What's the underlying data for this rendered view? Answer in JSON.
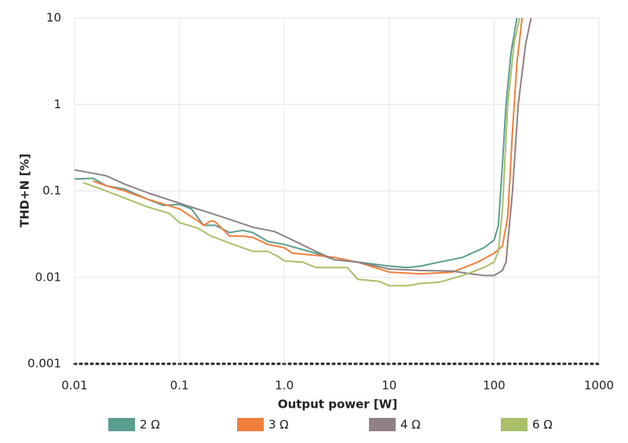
{
  "chart_data": {
    "type": "line",
    "xlabel": "Output power [W]",
    "ylabel": "THD+N [%]",
    "xscale": "log",
    "yscale": "log",
    "grid": true,
    "legend": "bottom",
    "xlim": [
      0.01,
      1000
    ],
    "xticks": [
      0.01,
      0.1,
      {
        "value": 1,
        "label": "1.0"
      },
      10,
      100,
      1000
    ],
    "ylim": [
      0.001,
      10
    ],
    "yticks": [
      0.001,
      0.01,
      0.1,
      1,
      10
    ],
    "series": [
      {
        "name": "2 Ω",
        "color": "#5a9e8f",
        "x": [
          0.01,
          0.015,
          0.02,
          0.03,
          0.05,
          0.07,
          0.1,
          0.13,
          0.17,
          0.22,
          0.3,
          0.4,
          0.5,
          0.7,
          1,
          2,
          3,
          5,
          10,
          15,
          20,
          30,
          50,
          80,
          100,
          110,
          120,
          130,
          145,
          165
        ],
        "values": [
          0.137,
          0.14,
          0.115,
          0.105,
          0.08,
          0.068,
          0.07,
          0.062,
          0.04,
          0.04,
          0.033,
          0.035,
          0.033,
          0.026,
          0.024,
          0.019,
          0.016,
          0.015,
          0.0135,
          0.013,
          0.0135,
          0.015,
          0.017,
          0.022,
          0.027,
          0.04,
          0.2,
          1,
          4,
          10
        ]
      },
      {
        "name": "3 Ω",
        "color": "#f07f3c",
        "x": [
          0.015,
          0.02,
          0.03,
          0.05,
          0.1,
          0.15,
          0.17,
          0.2,
          0.22,
          0.3,
          0.4,
          0.5,
          0.7,
          1,
          1.2,
          2,
          3,
          5,
          10,
          20,
          40,
          70,
          100,
          120,
          135,
          150,
          165,
          185
        ],
        "values": [
          0.13,
          0.115,
          0.1,
          0.08,
          0.062,
          0.045,
          0.04,
          0.045,
          0.044,
          0.03,
          0.03,
          0.029,
          0.024,
          0.022,
          0.019,
          0.018,
          0.017,
          0.015,
          0.0115,
          0.011,
          0.0115,
          0.015,
          0.019,
          0.023,
          0.05,
          0.5,
          3,
          10
        ]
      },
      {
        "name": "4 Ω",
        "color": "#8f8185",
        "x": [
          0.01,
          0.02,
          0.03,
          0.05,
          0.1,
          0.2,
          0.3,
          0.5,
          0.8,
          1,
          2,
          3,
          5,
          10,
          20,
          40,
          60,
          80,
          100,
          120,
          130,
          150,
          170,
          200,
          225
        ],
        "values": [
          0.175,
          0.15,
          0.12,
          0.095,
          0.072,
          0.055,
          0.047,
          0.038,
          0.034,
          0.03,
          0.02,
          0.016,
          0.015,
          0.0125,
          0.012,
          0.0118,
          0.011,
          0.0105,
          0.0105,
          0.012,
          0.015,
          0.1,
          1,
          5,
          10
        ]
      },
      {
        "name": "6 Ω",
        "color": "#a9bf6a",
        "x": [
          0.012,
          0.02,
          0.05,
          0.08,
          0.1,
          0.15,
          0.2,
          0.3,
          0.5,
          0.7,
          0.9,
          1,
          1.5,
          2,
          3,
          4,
          5,
          8,
          10,
          15,
          20,
          30,
          50,
          80,
          100,
          110,
          120,
          135,
          155,
          175
        ],
        "values": [
          0.125,
          0.1,
          0.065,
          0.055,
          0.043,
          0.037,
          0.03,
          0.025,
          0.02,
          0.02,
          0.017,
          0.0155,
          0.015,
          0.013,
          0.013,
          0.013,
          0.0095,
          0.009,
          0.008,
          0.008,
          0.0085,
          0.0088,
          0.0105,
          0.013,
          0.015,
          0.02,
          0.06,
          1,
          5,
          10
        ]
      }
    ]
  }
}
